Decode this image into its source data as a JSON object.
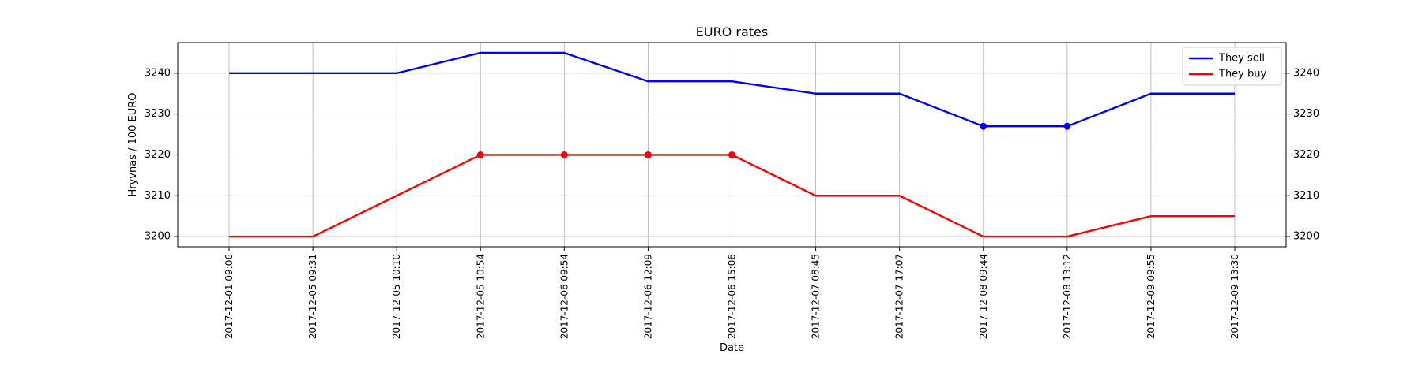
{
  "chart_data": {
    "type": "line",
    "title": "EURO rates",
    "xlabel": "Date",
    "ylabel": "Hryvnas / 100 EURO",
    "categories": [
      "2017-12-01 09:06",
      "2017-12-05 09:31",
      "2017-12-05 10:10",
      "2017-12-05 10:54",
      "2017-12-06 09:54",
      "2017-12-06 12:09",
      "2017-12-06 15:06",
      "2017-12-07 08:45",
      "2017-12-07 17:07",
      "2017-12-08 09:44",
      "2017-12-08 13:12",
      "2017-12-09 09:55",
      "2017-12-09 13:30"
    ],
    "ylim": [
      3197.5,
      3247.5
    ],
    "yticks": [
      3200,
      3210,
      3220,
      3230,
      3240
    ],
    "grid": true,
    "legend_position": "top-right",
    "y_axis_labels_both_sides": true,
    "series": [
      {
        "name": "They sell",
        "color": "#0000ff",
        "values": [
          3240,
          3240,
          3240,
          3245,
          3245,
          3238,
          3238,
          3235,
          3235,
          3227,
          3227,
          3235,
          3235
        ],
        "marker_indices": [
          9,
          10
        ]
      },
      {
        "name": "They buy",
        "color": "#ff0000",
        "values": [
          3200,
          3200,
          3210,
          3220,
          3220,
          3220,
          3220,
          3210,
          3210,
          3200,
          3200,
          3205,
          3205
        ],
        "marker_indices": [
          3,
          4,
          5,
          6
        ]
      }
    ]
  }
}
